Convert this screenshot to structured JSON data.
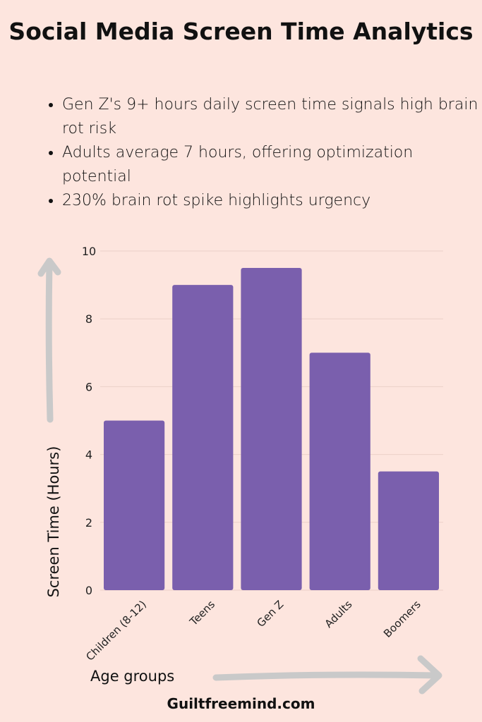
{
  "title": "Social Media Screen Time Analytics",
  "bullets": [
    "Gen Z's 9+ hours daily screen time signals high brain rot risk",
    "Adults average 7 hours, offering optimization potential",
    "230% brain rot spike highlights urgency"
  ],
  "footer": "Guiltfreemind.com",
  "colors": {
    "background": "#fde5de",
    "bar": "#7a5fad",
    "arrow": "#c8c8c8",
    "grid": "#ecd0c8"
  },
  "chart_data": {
    "type": "bar",
    "categories": [
      "Children (8-12)",
      "Teens",
      "Gen Z",
      "Adults",
      "Boomers"
    ],
    "values": [
      5,
      9,
      9.5,
      7,
      3.5
    ],
    "xlabel": "Age groups",
    "ylabel": "Screen Time (Hours)",
    "ylim": [
      0,
      10
    ],
    "yticks": [
      "0",
      "2",
      "4",
      "6",
      "8",
      "10"
    ],
    "grid": true
  }
}
